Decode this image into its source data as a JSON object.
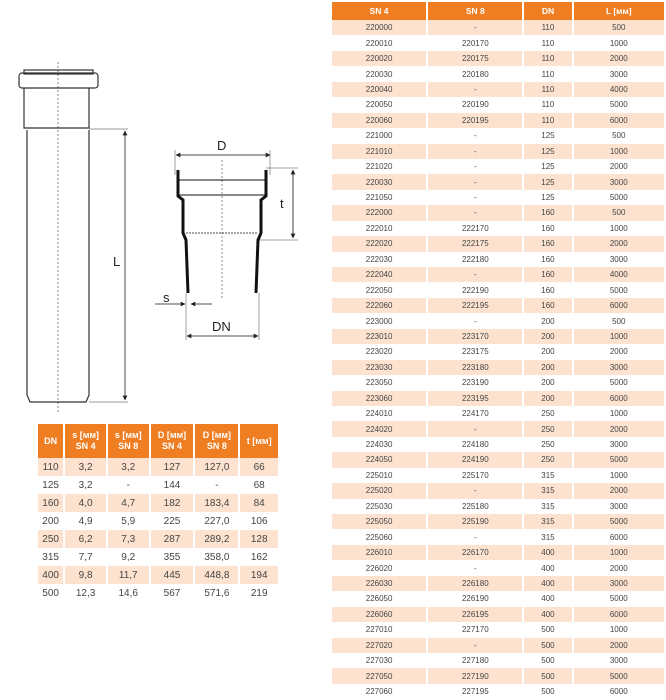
{
  "drawing": {
    "labels": {
      "L": "L",
      "D": "D",
      "t": "t",
      "s": "s",
      "DN": "DN"
    }
  },
  "dims_table": {
    "headers": [
      [
        "DN",
        ""
      ],
      [
        "s [мм]",
        "SN 4"
      ],
      [
        "s [мм]",
        "SN 8"
      ],
      [
        "D  [мм]",
        "SN 4"
      ],
      [
        "D  [мм]",
        "SN 8"
      ],
      [
        "t [мм]",
        ""
      ]
    ],
    "rows": [
      [
        "110",
        "3,2",
        "3,2",
        "127",
        "127,0",
        "66"
      ],
      [
        "125",
        "3,2",
        "-",
        "144",
        "-",
        "68"
      ],
      [
        "160",
        "4,0",
        "4,7",
        "182",
        "183,4",
        "84"
      ],
      [
        "200",
        "4,9",
        "5,9",
        "225",
        "227,0",
        "106"
      ],
      [
        "250",
        "6,2",
        "7,3",
        "287",
        "289,2",
        "128"
      ],
      [
        "315",
        "7,7",
        "9,2",
        "355",
        "358,0",
        "162"
      ],
      [
        "400",
        "9,8",
        "11,7",
        "445",
        "448,8",
        "194"
      ],
      [
        "500",
        "12,3",
        "14,6",
        "567",
        "571,6",
        "219"
      ]
    ]
  },
  "codes_table": {
    "headers": [
      "SN 4",
      "SN 8",
      "DN",
      "L [мм]"
    ],
    "rows": [
      [
        "220000",
        "-",
        "110",
        "500"
      ],
      [
        "220010",
        "220170",
        "110",
        "1000"
      ],
      [
        "220020",
        "220175",
        "110",
        "2000"
      ],
      [
        "220030",
        "220180",
        "110",
        "3000"
      ],
      [
        "220040",
        "-",
        "110",
        "4000"
      ],
      [
        "220050",
        "220190",
        "110",
        "5000"
      ],
      [
        "220060",
        "220195",
        "110",
        "6000"
      ],
      [
        "221000",
        "-",
        "125",
        "500"
      ],
      [
        "221010",
        "-",
        "125",
        "1000"
      ],
      [
        "221020",
        "-",
        "125",
        "2000"
      ],
      [
        "220030",
        "-",
        "125",
        "3000"
      ],
      [
        "221050",
        "-",
        "125",
        "5000"
      ],
      [
        "222000",
        "-",
        "160",
        "500"
      ],
      [
        "222010",
        "222170",
        "160",
        "1000"
      ],
      [
        "222020",
        "222175",
        "160",
        "2000"
      ],
      [
        "222030",
        "222180",
        "160",
        "3000"
      ],
      [
        "222040",
        "-",
        "160",
        "4000"
      ],
      [
        "222050",
        "222190",
        "160",
        "5000"
      ],
      [
        "222060",
        "222195",
        "160",
        "6000"
      ],
      [
        "223000",
        "-",
        "200",
        "500"
      ],
      [
        "223010",
        "223170",
        "200",
        "1000"
      ],
      [
        "223020",
        "223175",
        "200",
        "2000"
      ],
      [
        "223030",
        "223180",
        "200",
        "3000"
      ],
      [
        "223050",
        "223190",
        "200",
        "5000"
      ],
      [
        "223060",
        "223195",
        "200",
        "6000"
      ],
      [
        "224010",
        "224170",
        "250",
        "1000"
      ],
      [
        "224020",
        "-",
        "250",
        "2000"
      ],
      [
        "224030",
        "224180",
        "250",
        "3000"
      ],
      [
        "224050",
        "224190",
        "250",
        "5000"
      ],
      [
        "225010",
        "225170",
        "315",
        "1000"
      ],
      [
        "225020",
        "-",
        "315",
        "2000"
      ],
      [
        "225030",
        "225180",
        "315",
        "3000"
      ],
      [
        "225050",
        "225190",
        "315",
        "5000"
      ],
      [
        "225060",
        "-",
        "315",
        "6000"
      ],
      [
        "226010",
        "226170",
        "400",
        "1000"
      ],
      [
        "226020",
        "-",
        "400",
        "2000"
      ],
      [
        "226030",
        "226180",
        "400",
        "3000"
      ],
      [
        "226050",
        "226190",
        "400",
        "5000"
      ],
      [
        "226060",
        "226195",
        "400",
        "6000"
      ],
      [
        "227010",
        "227170",
        "500",
        "1000"
      ],
      [
        "227020",
        "-",
        "500",
        "2000"
      ],
      [
        "227030",
        "227180",
        "500",
        "3000"
      ],
      [
        "227050",
        "227190",
        "500",
        "5000"
      ],
      [
        "227060",
        "227195",
        "500",
        "6000"
      ]
    ]
  },
  "colors": {
    "header": "#ef7d22",
    "alt_row": "#fde3cf"
  }
}
